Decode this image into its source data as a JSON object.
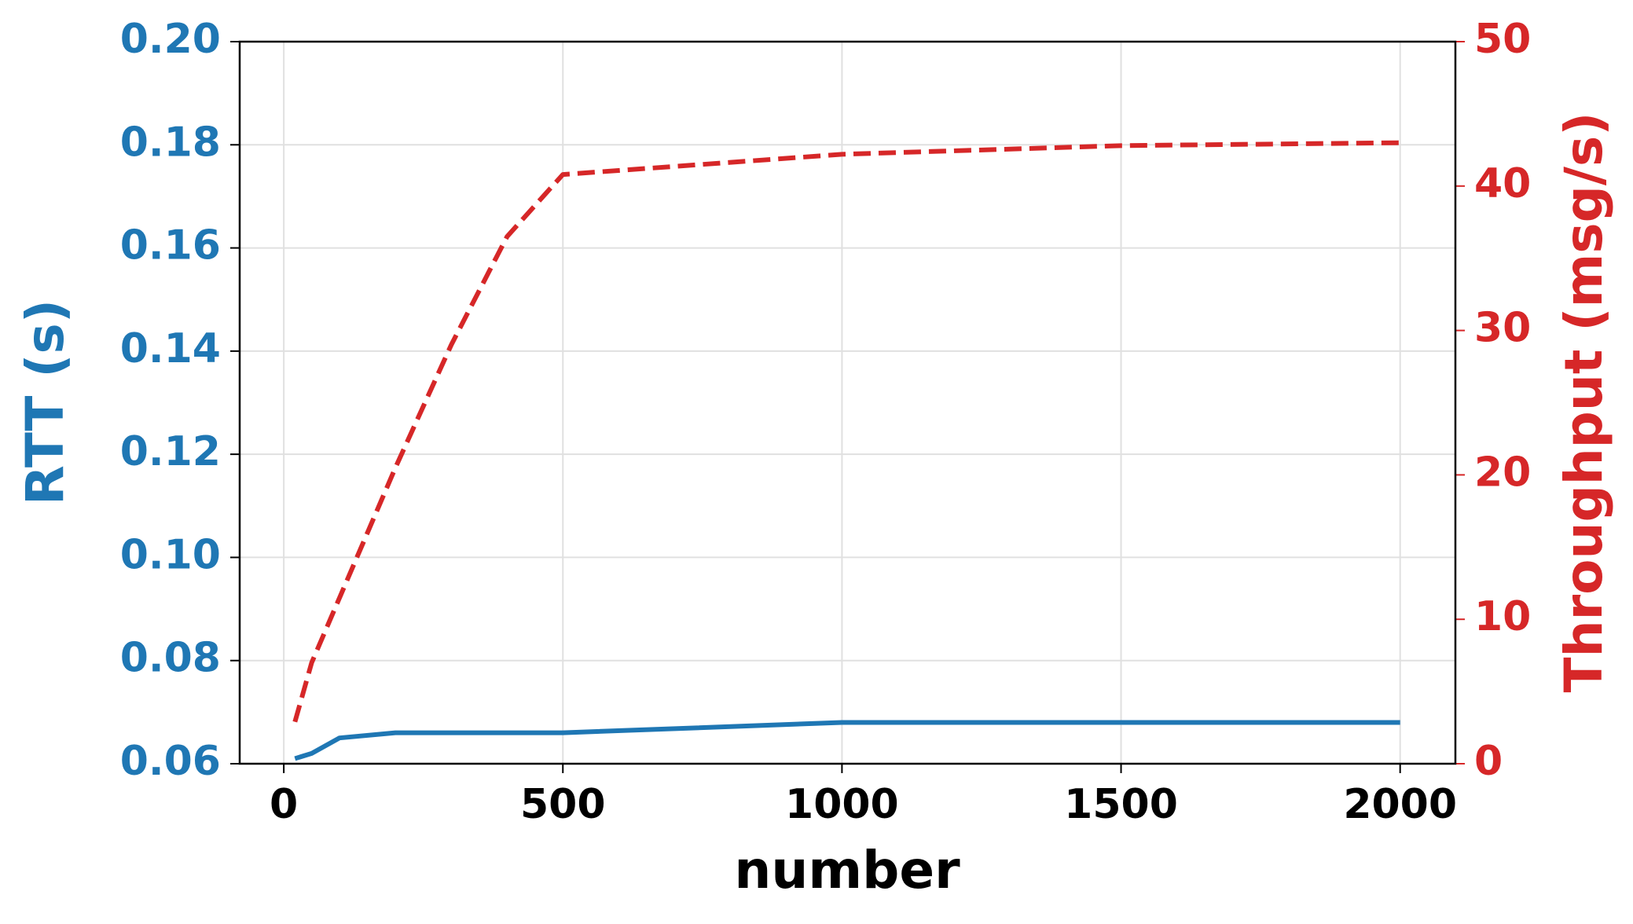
{
  "chart_data": {
    "type": "line",
    "x_label": "number",
    "y_label": "RTT (s)",
    "y2_label": "Throughput (msg/s)",
    "x": [
      20,
      50,
      100,
      200,
      300,
      400,
      500,
      1000,
      1500,
      2000
    ],
    "series": [
      {
        "name": "RTT",
        "color": "#1f77b4",
        "dash": false,
        "values": [
          0.061,
          0.062,
          0.065,
          0.066,
          0.066,
          0.066,
          0.066,
          0.068,
          0.068,
          0.068
        ]
      },
      {
        "name": "Throughput",
        "color": "#d62728",
        "dash": true,
        "axis": "y2",
        "values": [
          2.9,
          7.0,
          11.5,
          20.5,
          29.0,
          36.5,
          40.8,
          42.2,
          42.8,
          43.0
        ]
      }
    ],
    "xlim": [
      -79,
      2099
    ],
    "xticks": [
      0,
      500,
      1000,
      1500,
      2000
    ],
    "ylim": [
      0.06,
      0.2
    ],
    "yticks": [
      0.06,
      0.08,
      {
        "value": 0.1,
        "label": "0.10"
      },
      0.12,
      0.14,
      0.16,
      0.18,
      {
        "value": 0.2,
        "label": "0.20"
      }
    ],
    "y2lim": [
      0,
      50
    ],
    "y2ticks": [
      0,
      10,
      20,
      30,
      40,
      50
    ],
    "grid": true
  }
}
